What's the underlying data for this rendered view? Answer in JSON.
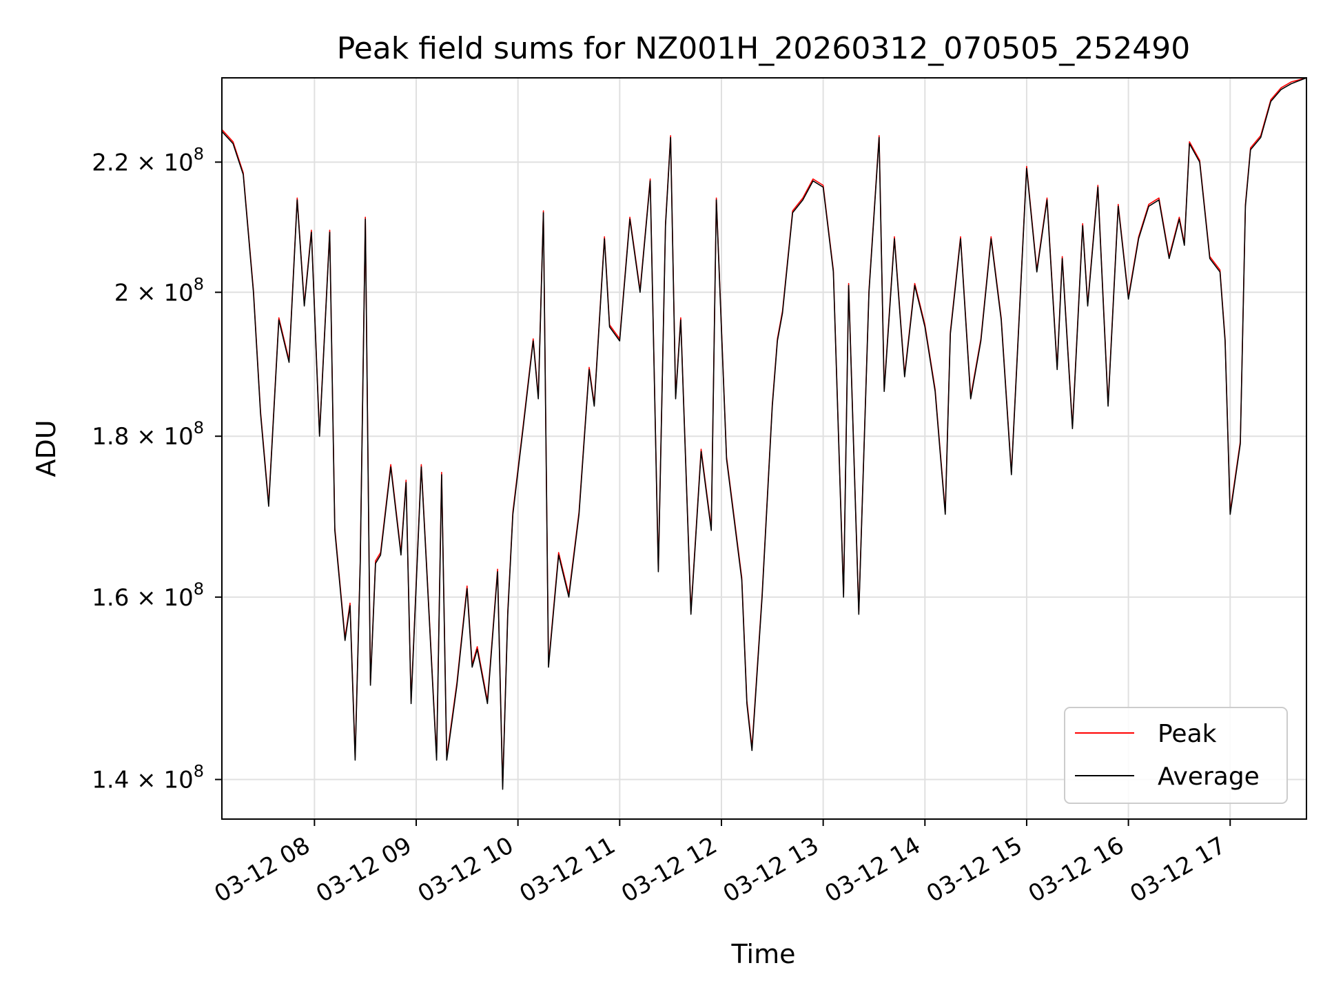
{
  "chart_data": {
    "type": "line",
    "title": "Peak field sums for NZ001H_20260312_070505_252490",
    "xlabel": "Time",
    "ylabel": "ADU",
    "yscale": "log",
    "xlim_hours": [
      7.09,
      17.75
    ],
    "ylim": [
      136000000,
      234000000
    ],
    "grid": true,
    "legend_position": "lower right",
    "x_ticks": [
      {
        "value": 8,
        "label": "03-12 08"
      },
      {
        "value": 9,
        "label": "03-12 09"
      },
      {
        "value": 10,
        "label": "03-12 10"
      },
      {
        "value": 11,
        "label": "03-12 11"
      },
      {
        "value": 12,
        "label": "03-12 12"
      },
      {
        "value": 13,
        "label": "03-12 13"
      },
      {
        "value": 14,
        "label": "03-12 14"
      },
      {
        "value": 15,
        "label": "03-12 15"
      },
      {
        "value": 16,
        "label": "03-12 16"
      },
      {
        "value": 17,
        "label": "03-12 17"
      }
    ],
    "y_ticks": [
      {
        "value": 140000000,
        "mantissa": "1.4"
      },
      {
        "value": 160000000,
        "mantissa": "1.6"
      },
      {
        "value": 180000000,
        "mantissa": "1.8"
      },
      {
        "value": 200000000,
        "mantissa": "2"
      },
      {
        "value": 220000000,
        "mantissa": "2.2"
      }
    ],
    "y_tick_suffix": "× 10",
    "y_tick_exponent": "8",
    "series": [
      {
        "name": "Peak",
        "color": "#ff0000",
        "offset": 300000
      },
      {
        "name": "Average",
        "color": "#000000",
        "offset": 0
      }
    ],
    "x_hours": [
      7.09,
      7.2,
      7.3,
      7.4,
      7.47,
      7.55,
      7.65,
      7.75,
      7.83,
      7.9,
      7.97,
      8.05,
      8.15,
      8.2,
      8.3,
      8.35,
      8.4,
      8.45,
      8.5,
      8.55,
      8.6,
      8.65,
      8.75,
      8.85,
      8.9,
      8.95,
      9.05,
      9.1,
      9.2,
      9.25,
      9.3,
      9.4,
      9.5,
      9.55,
      9.6,
      9.7,
      9.8,
      9.85,
      9.9,
      9.95,
      10.05,
      10.15,
      10.2,
      10.25,
      10.3,
      10.4,
      10.5,
      10.6,
      10.7,
      10.75,
      10.85,
      10.9,
      11.0,
      11.1,
      11.2,
      11.3,
      11.38,
      11.45,
      11.5,
      11.55,
      11.6,
      11.7,
      11.8,
      11.9,
      11.95,
      12.05,
      12.2,
      12.25,
      12.3,
      12.4,
      12.5,
      12.55,
      12.6,
      12.7,
      12.8,
      12.9,
      13.0,
      13.1,
      13.2,
      13.25,
      13.35,
      13.45,
      13.55,
      13.6,
      13.7,
      13.8,
      13.9,
      13.95,
      14.0,
      14.1,
      14.2,
      14.25,
      14.35,
      14.45,
      14.55,
      14.65,
      14.75,
      14.85,
      15.0,
      15.1,
      15.2,
      15.3,
      15.35,
      15.45,
      15.55,
      15.6,
      15.7,
      15.8,
      15.9,
      16.0,
      16.1,
      16.2,
      16.3,
      16.4,
      16.5,
      16.55,
      16.6,
      16.7,
      16.8,
      16.9,
      16.95,
      17.0,
      17.1,
      17.15,
      17.2,
      17.3,
      17.4,
      17.5,
      17.6,
      17.75
    ],
    "values": [
      225000000,
      223000000,
      218000000,
      200000000,
      183000000,
      171000000,
      196000000,
      190000000,
      214000000,
      198000000,
      209000000,
      180000000,
      209000000,
      168000000,
      155000000,
      159000000,
      142000000,
      164000000,
      211000000,
      150000000,
      164000000,
      165000000,
      176000000,
      165000000,
      174000000,
      148000000,
      176000000,
      164000000,
      142000000,
      175000000,
      142000000,
      150000000,
      161000000,
      152000000,
      154000000,
      148000000,
      163000000,
      139000000,
      158000000,
      170000000,
      181000000,
      193000000,
      185000000,
      212000000,
      152000000,
      165000000,
      160000000,
      170000000,
      189000000,
      184000000,
      208000000,
      195000000,
      193000000,
      211000000,
      200000000,
      217000000,
      163000000,
      210000000,
      224000000,
      185000000,
      196000000,
      158000000,
      178000000,
      168000000,
      214000000,
      177000000,
      162000000,
      148000000,
      143000000,
      160000000,
      184000000,
      193000000,
      197000000,
      212000000,
      214000000,
      217000000,
      216000000,
      203000000,
      160000000,
      201000000,
      158000000,
      200000000,
      224000000,
      186000000,
      208000000,
      188000000,
      201000000,
      198000000,
      195000000,
      186000000,
      170000000,
      194000000,
      208000000,
      185000000,
      193000000,
      208000000,
      196000000,
      175000000,
      219000000,
      203000000,
      214000000,
      189000000,
      205000000,
      181000000,
      210000000,
      198000000,
      216000000,
      184000000,
      213000000,
      199000000,
      208000000,
      213000000,
      214000000,
      205000000,
      211000000,
      207000000,
      223000000,
      220000000,
      205000000,
      203000000,
      193000000,
      170000000,
      179000000,
      213000000,
      222000000,
      224000000,
      230000000,
      232000000,
      233000000,
      234000000
    ]
  }
}
